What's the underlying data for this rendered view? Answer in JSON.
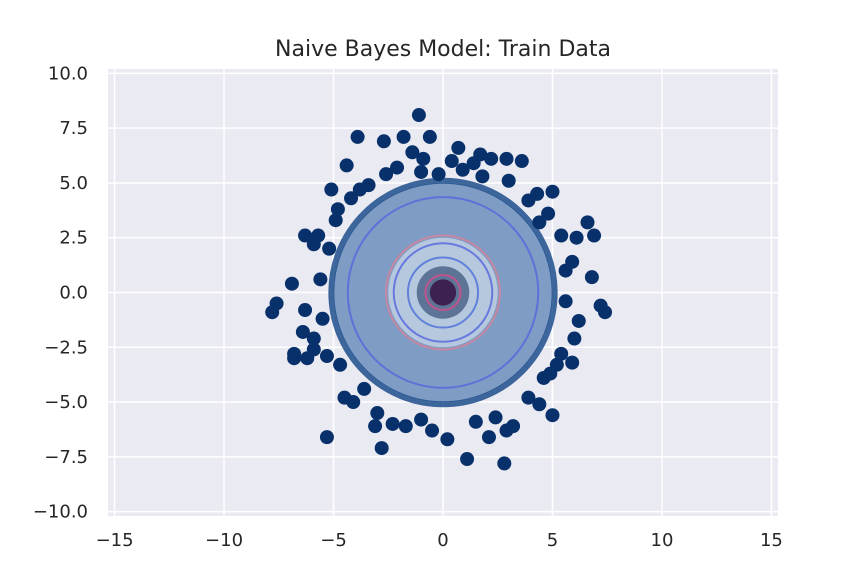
{
  "chart_data": {
    "type": "scatter",
    "title": "Naive Bayes Model: Train Data",
    "xlabel": "",
    "ylabel": "",
    "xlim": [
      -15.3,
      15.3
    ],
    "ylim": [
      -10.2,
      10.2
    ],
    "x_ticks": [
      -15,
      -10,
      -5,
      0,
      5,
      10,
      15
    ],
    "x_tick_labels": [
      "−15",
      "−10",
      "−5",
      "0",
      "5",
      "10",
      "15"
    ],
    "y_ticks": [
      10.0,
      7.5,
      5.0,
      2.5,
      0.0,
      -2.5,
      -5.0,
      -7.5,
      -10.0
    ],
    "y_tick_labels": [
      "10.0",
      "7.5",
      "5.0",
      "2.5",
      "0.0",
      "−2.5",
      "−5.0",
      "−7.5",
      "−10.0"
    ],
    "grid": true,
    "legend": "none",
    "background_color": "#eaeaf2",
    "point_color": "#08306b",
    "density": {
      "center": [
        0.0,
        0.0
      ],
      "radii": [
        5.0,
        2.5,
        1.2,
        0.6
      ],
      "colors": [
        "#7f9cc4",
        "#b6c8de",
        "#5e7496",
        "#3d2150"
      ],
      "contour_radii": [
        4.35,
        2.6,
        2.25,
        1.6,
        0.8
      ],
      "contour_colors": [
        "#5566dd",
        "#d7829a",
        "#5566dd",
        "#4b6fd8",
        "#d74b8c"
      ]
    },
    "points": [
      [
        -1.1,
        8.1
      ],
      [
        -0.6,
        7.1
      ],
      [
        -3.9,
        7.1
      ],
      [
        -2.7,
        6.9
      ],
      [
        -1.8,
        7.1
      ],
      [
        -1.4,
        6.4
      ],
      [
        0.7,
        6.6
      ],
      [
        1.7,
        6.3
      ],
      [
        2.2,
        6.1
      ],
      [
        2.9,
        6.1
      ],
      [
        3.6,
        6.0
      ],
      [
        -4.4,
        5.8
      ],
      [
        -2.1,
        5.7
      ],
      [
        -0.9,
        6.1
      ],
      [
        0.4,
        6.0
      ],
      [
        1.4,
        5.9
      ],
      [
        -5.1,
        4.7
      ],
      [
        4.3,
        4.5
      ],
      [
        5.0,
        4.6
      ],
      [
        6.6,
        3.2
      ],
      [
        6.9,
        2.6
      ],
      [
        6.1,
        2.5
      ],
      [
        -6.3,
        2.6
      ],
      [
        -5.7,
        2.6
      ],
      [
        -5.9,
        2.2
      ],
      [
        5.9,
        1.4
      ],
      [
        6.8,
        0.7
      ],
      [
        -7.6,
        -0.5
      ],
      [
        -7.8,
        -0.9
      ],
      [
        -6.9,
        0.4
      ],
      [
        7.2,
        -0.6
      ],
      [
        7.4,
        -0.9
      ],
      [
        -6.3,
        -0.8
      ],
      [
        6.2,
        -1.3
      ],
      [
        -6.4,
        -1.8
      ],
      [
        -5.9,
        -2.1
      ],
      [
        -5.9,
        -2.6
      ],
      [
        -6.8,
        -2.8
      ],
      [
        -6.8,
        -3.0
      ],
      [
        -6.2,
        -3.0
      ],
      [
        6.0,
        -2.1
      ],
      [
        5.9,
        -3.2
      ],
      [
        5.2,
        -3.3
      ],
      [
        -4.5,
        -4.8
      ],
      [
        3.9,
        -4.8
      ],
      [
        4.4,
        -5.1
      ],
      [
        5.0,
        -5.6
      ],
      [
        -5.3,
        -6.6
      ],
      [
        -2.8,
        -7.1
      ],
      [
        -3.1,
        -6.1
      ],
      [
        -2.3,
        -6.0
      ],
      [
        -1.7,
        -6.1
      ],
      [
        1.1,
        -7.6
      ],
      [
        2.8,
        -7.8
      ],
      [
        2.1,
        -6.6
      ],
      [
        3.2,
        -6.1
      ],
      [
        0.2,
        -6.7
      ],
      [
        -0.5,
        -6.3
      ],
      [
        2.9,
        -6.3
      ],
      [
        -4.1,
        -5.0
      ],
      [
        -3.6,
        -4.4
      ],
      [
        4.6,
        -3.9
      ],
      [
        5.4,
        -2.8
      ],
      [
        -5.5,
        -1.2
      ],
      [
        5.6,
        -0.4
      ],
      [
        -5.6,
        0.6
      ],
      [
        5.6,
        1.0
      ],
      [
        -5.2,
        2.0
      ],
      [
        5.4,
        2.6
      ],
      [
        -4.9,
        3.3
      ],
      [
        4.8,
        3.6
      ],
      [
        -4.2,
        4.3
      ],
      [
        3.9,
        4.2
      ],
      [
        -3.4,
        4.9
      ],
      [
        3.0,
        5.1
      ],
      [
        -2.6,
        5.4
      ],
      [
        -0.2,
        5.4
      ],
      [
        1.8,
        5.3
      ],
      [
        -1.0,
        5.5
      ],
      [
        0.9,
        5.6
      ],
      [
        -3.0,
        -5.5
      ],
      [
        -1.0,
        -5.8
      ],
      [
        1.5,
        -5.9
      ],
      [
        2.4,
        -5.7
      ],
      [
        -4.7,
        -3.3
      ],
      [
        4.9,
        -3.7
      ],
      [
        -5.3,
        -2.9
      ],
      [
        -4.8,
        3.8
      ],
      [
        4.4,
        3.2
      ],
      [
        -3.8,
        4.7
      ]
    ]
  }
}
